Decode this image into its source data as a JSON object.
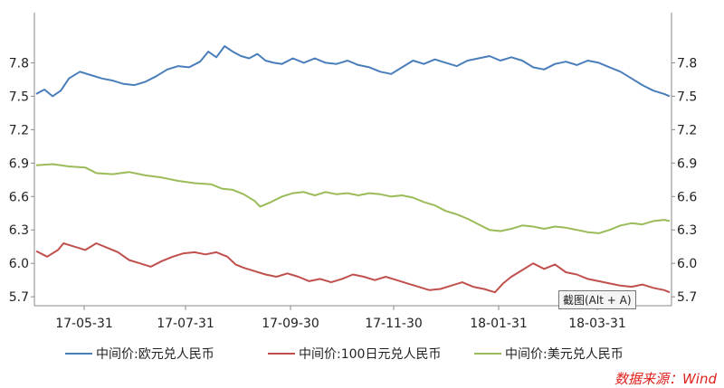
{
  "chart_data": {
    "type": "line",
    "y_ticks": [
      "5.7",
      "6.0",
      "6.3",
      "6.6",
      "6.9",
      "7.2",
      "7.5",
      "7.8"
    ],
    "x_ticks": [
      "17-05-31",
      "17-07-31",
      "17-09-30",
      "17-11-30",
      "18-01-31",
      "18-03-31"
    ],
    "ylim": [
      5.62,
      8.25
    ],
    "grid": false,
    "legend_position": "bottom",
    "series": [
      {
        "name": "中间价:欧元兑人民币",
        "color": "#4a7ebb",
        "points": [
          [
            0,
            7.52
          ],
          [
            3,
            7.56
          ],
          [
            6,
            7.5
          ],
          [
            9,
            7.55
          ],
          [
            12,
            7.66
          ],
          [
            16,
            7.72
          ],
          [
            20,
            7.69
          ],
          [
            24,
            7.66
          ],
          [
            28,
            7.64
          ],
          [
            32,
            7.61
          ],
          [
            36,
            7.6
          ],
          [
            40,
            7.63
          ],
          [
            44,
            7.68
          ],
          [
            48,
            7.74
          ],
          [
            52,
            7.77
          ],
          [
            56,
            7.76
          ],
          [
            60,
            7.81
          ],
          [
            63,
            7.9
          ],
          [
            66,
            7.85
          ],
          [
            69,
            7.95
          ],
          [
            72,
            7.9
          ],
          [
            75,
            7.86
          ],
          [
            78,
            7.84
          ],
          [
            81,
            7.88
          ],
          [
            84,
            7.82
          ],
          [
            87,
            7.8
          ],
          [
            90,
            7.79
          ],
          [
            94,
            7.84
          ],
          [
            98,
            7.8
          ],
          [
            102,
            7.84
          ],
          [
            106,
            7.8
          ],
          [
            110,
            7.79
          ],
          [
            114,
            7.82
          ],
          [
            118,
            7.78
          ],
          [
            122,
            7.76
          ],
          [
            126,
            7.72
          ],
          [
            130,
            7.7
          ],
          [
            134,
            7.76
          ],
          [
            138,
            7.82
          ],
          [
            142,
            7.79
          ],
          [
            146,
            7.83
          ],
          [
            150,
            7.8
          ],
          [
            154,
            7.77
          ],
          [
            158,
            7.82
          ],
          [
            162,
            7.84
          ],
          [
            166,
            7.86
          ],
          [
            170,
            7.82
          ],
          [
            174,
            7.85
          ],
          [
            178,
            7.82
          ],
          [
            182,
            7.76
          ],
          [
            186,
            7.74
          ],
          [
            190,
            7.79
          ],
          [
            194,
            7.81
          ],
          [
            198,
            7.78
          ],
          [
            202,
            7.82
          ],
          [
            206,
            7.8
          ],
          [
            210,
            7.76
          ],
          [
            214,
            7.72
          ],
          [
            218,
            7.66
          ],
          [
            222,
            7.6
          ],
          [
            226,
            7.55
          ],
          [
            230,
            7.52
          ],
          [
            232,
            7.5
          ]
        ]
      },
      {
        "name": "中间价:100日元兑人民币",
        "color": "#c0504d",
        "points": [
          [
            0,
            6.11
          ],
          [
            4,
            6.06
          ],
          [
            8,
            6.12
          ],
          [
            10,
            6.18
          ],
          [
            14,
            6.15
          ],
          [
            18,
            6.12
          ],
          [
            22,
            6.18
          ],
          [
            26,
            6.14
          ],
          [
            30,
            6.1
          ],
          [
            34,
            6.03
          ],
          [
            38,
            6.0
          ],
          [
            42,
            5.97
          ],
          [
            46,
            6.02
          ],
          [
            50,
            6.06
          ],
          [
            54,
            6.09
          ],
          [
            58,
            6.1
          ],
          [
            62,
            6.08
          ],
          [
            66,
            6.1
          ],
          [
            70,
            6.06
          ],
          [
            73,
            5.99
          ],
          [
            76,
            5.96
          ],
          [
            80,
            5.93
          ],
          [
            84,
            5.9
          ],
          [
            88,
            5.88
          ],
          [
            92,
            5.91
          ],
          [
            96,
            5.88
          ],
          [
            100,
            5.84
          ],
          [
            104,
            5.86
          ],
          [
            108,
            5.83
          ],
          [
            112,
            5.86
          ],
          [
            116,
            5.9
          ],
          [
            120,
            5.88
          ],
          [
            124,
            5.85
          ],
          [
            128,
            5.88
          ],
          [
            132,
            5.85
          ],
          [
            136,
            5.82
          ],
          [
            140,
            5.79
          ],
          [
            144,
            5.76
          ],
          [
            148,
            5.77
          ],
          [
            152,
            5.8
          ],
          [
            156,
            5.83
          ],
          [
            160,
            5.79
          ],
          [
            164,
            5.77
          ],
          [
            168,
            5.74
          ],
          [
            171,
            5.82
          ],
          [
            174,
            5.88
          ],
          [
            178,
            5.94
          ],
          [
            182,
            6.0
          ],
          [
            186,
            5.95
          ],
          [
            190,
            5.99
          ],
          [
            194,
            5.92
          ],
          [
            198,
            5.9
          ],
          [
            202,
            5.86
          ],
          [
            206,
            5.84
          ],
          [
            210,
            5.82
          ],
          [
            214,
            5.8
          ],
          [
            218,
            5.79
          ],
          [
            222,
            5.81
          ],
          [
            226,
            5.78
          ],
          [
            230,
            5.76
          ],
          [
            232,
            5.74
          ]
        ]
      },
      {
        "name": "中间价:美元兑人民币",
        "color": "#9bbb59",
        "points": [
          [
            0,
            6.88
          ],
          [
            6,
            6.89
          ],
          [
            12,
            6.87
          ],
          [
            18,
            6.86
          ],
          [
            22,
            6.81
          ],
          [
            28,
            6.8
          ],
          [
            34,
            6.82
          ],
          [
            40,
            6.79
          ],
          [
            46,
            6.77
          ],
          [
            52,
            6.74
          ],
          [
            58,
            6.72
          ],
          [
            64,
            6.71
          ],
          [
            68,
            6.67
          ],
          [
            72,
            6.66
          ],
          [
            76,
            6.62
          ],
          [
            80,
            6.56
          ],
          [
            82,
            6.51
          ],
          [
            86,
            6.55
          ],
          [
            90,
            6.6
          ],
          [
            94,
            6.63
          ],
          [
            98,
            6.64
          ],
          [
            102,
            6.61
          ],
          [
            106,
            6.64
          ],
          [
            110,
            6.62
          ],
          [
            114,
            6.63
          ],
          [
            118,
            6.61
          ],
          [
            122,
            6.63
          ],
          [
            126,
            6.62
          ],
          [
            130,
            6.6
          ],
          [
            134,
            6.61
          ],
          [
            138,
            6.59
          ],
          [
            142,
            6.55
          ],
          [
            146,
            6.52
          ],
          [
            150,
            6.47
          ],
          [
            154,
            6.44
          ],
          [
            158,
            6.4
          ],
          [
            162,
            6.35
          ],
          [
            166,
            6.3
          ],
          [
            170,
            6.29
          ],
          [
            174,
            6.31
          ],
          [
            178,
            6.34
          ],
          [
            182,
            6.33
          ],
          [
            186,
            6.31
          ],
          [
            190,
            6.33
          ],
          [
            194,
            6.32
          ],
          [
            198,
            6.3
          ],
          [
            202,
            6.28
          ],
          [
            206,
            6.27
          ],
          [
            210,
            6.3
          ],
          [
            214,
            6.34
          ],
          [
            218,
            6.36
          ],
          [
            222,
            6.35
          ],
          [
            226,
            6.38
          ],
          [
            230,
            6.39
          ],
          [
            232,
            6.38
          ]
        ]
      }
    ]
  },
  "tooltip_text": "截图(Alt + A)",
  "source_text": "数据来源：Wind"
}
